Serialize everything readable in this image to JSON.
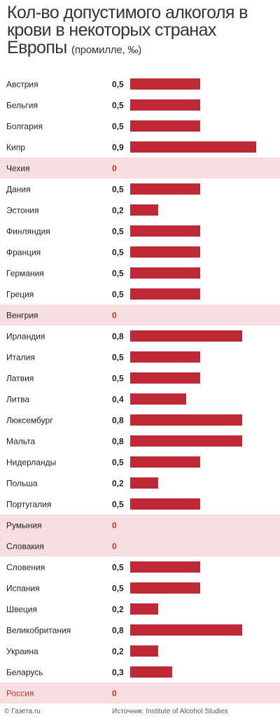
{
  "title": {
    "main": "Кол-во допустимого алкоголя в крови в некоторых странах Европы",
    "unit": "(промилле, ‰)"
  },
  "colors": {
    "bar": "#be2a36",
    "zero_row_bg": "#f7dedf",
    "zero_value": "#c0392b",
    "russia_label": "#c0392b",
    "label": "#222222"
  },
  "footer": {
    "brand": "© Газета.ru",
    "source": "Источник: Institute of Alcohol Studies"
  },
  "chart_data": {
    "type": "bar",
    "orientation": "horizontal",
    "xlim": [
      0,
      0.9
    ],
    "grid": false,
    "categories": [
      "Австрия",
      "Бельгия",
      "Болгария",
      "Кипр",
      "Чехия",
      "Дания",
      "Эстония",
      "Финляндия",
      "Франция",
      "Германия",
      "Греция",
      "Венгрия",
      "Ирландия",
      "Италия",
      "Латвия",
      "Литва",
      "Люксембург",
      "Мальта",
      "Нидерланды",
      "Польша",
      "Португалия",
      "Румыния",
      "Словакия",
      "Словения",
      "Испания",
      "Швеция",
      "Великобритания",
      "Украина",
      "Беларусь",
      "Россия"
    ],
    "values": [
      0.5,
      0.5,
      0.5,
      0.9,
      0,
      0.5,
      0.2,
      0.5,
      0.5,
      0.5,
      0.5,
      0,
      0.8,
      0.5,
      0.5,
      0.4,
      0.8,
      0.8,
      0.5,
      0.2,
      0.5,
      0,
      0,
      0.5,
      0.5,
      0.2,
      0.8,
      0.2,
      0.3,
      0
    ],
    "value_labels": [
      "0,5",
      "0,5",
      "0,5",
      "0,9",
      "0",
      "0,5",
      "0,2",
      "0,5",
      "0,5",
      "0,5",
      "0,5",
      "0",
      "0,8",
      "0,5",
      "0,5",
      "0,4",
      "0,8",
      "0,8",
      "0,5",
      "0,2",
      "0,5",
      "0",
      "0",
      "0,5",
      "0,5",
      "0,2",
      "0,8",
      "0,2",
      "0,3",
      "0"
    ]
  }
}
